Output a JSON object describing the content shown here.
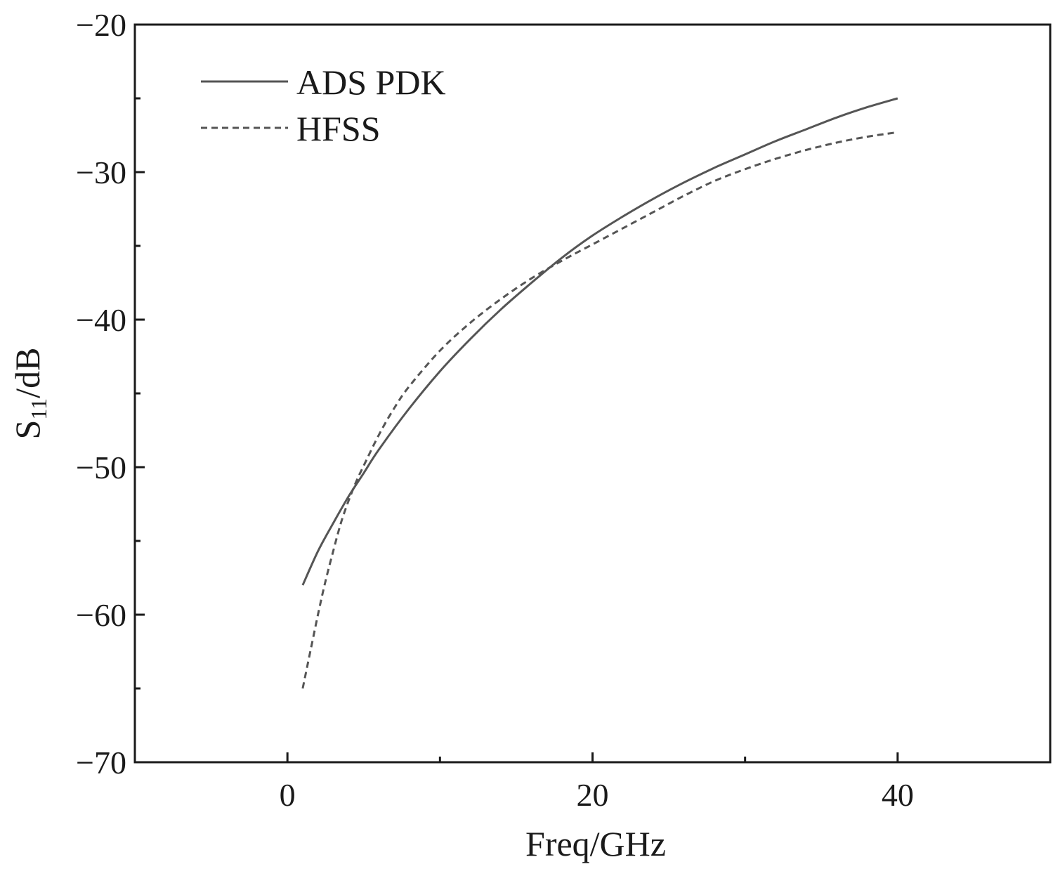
{
  "chart_data": {
    "type": "line",
    "title": "",
    "xlabel": "Freq/GHz",
    "ylabel": {
      "main": "S",
      "sub": "11",
      "unit": "/dB"
    },
    "xlim": [
      -10,
      50
    ],
    "ylim": [
      -70,
      -20
    ],
    "x_major_ticks": [
      0,
      20,
      40
    ],
    "x_tick_labels": [
      "0",
      "20",
      "40"
    ],
    "x_minor_ticks": [
      -10,
      10,
      30,
      50
    ],
    "y_major_ticks": [
      -70,
      -60,
      -50,
      -40,
      -30,
      -20
    ],
    "y_tick_labels": [
      "−70",
      "−60",
      "−50",
      "−40",
      "−30",
      "−20"
    ],
    "y_minor_ticks": [
      -65,
      -55,
      -45,
      -35,
      -25
    ],
    "grid": false,
    "legend_position": "top-left",
    "series": [
      {
        "name": "ADS PDK",
        "style": "solid",
        "color": "#555555",
        "x": [
          1,
          2,
          3,
          4,
          5,
          6,
          8,
          10,
          12,
          14,
          16,
          18,
          20,
          22,
          24,
          26,
          28,
          30,
          32,
          34,
          36,
          38,
          40
        ],
        "y": [
          -58.0,
          -55.7,
          -53.8,
          -52.0,
          -50.4,
          -48.8,
          -46.0,
          -43.5,
          -41.3,
          -39.3,
          -37.5,
          -35.8,
          -34.3,
          -33.0,
          -31.8,
          -30.7,
          -29.7,
          -28.8,
          -27.9,
          -27.1,
          -26.3,
          -25.6,
          -25.0
        ]
      },
      {
        "name": "HFSS",
        "style": "dashed",
        "color": "#555555",
        "x": [
          1,
          1.5,
          2,
          2.5,
          3,
          3.5,
          4,
          4.5,
          5,
          6,
          7,
          8,
          10,
          12,
          14,
          16,
          18,
          20,
          22,
          24,
          26,
          28,
          30,
          32,
          34,
          36,
          38,
          40
        ],
        "y": [
          -65.0,
          -62.5,
          -60.0,
          -57.7,
          -55.7,
          -53.8,
          -52.3,
          -51.0,
          -49.9,
          -47.8,
          -46.0,
          -44.5,
          -42.1,
          -40.2,
          -38.6,
          -37.2,
          -36.0,
          -34.9,
          -33.8,
          -32.7,
          -31.6,
          -30.6,
          -29.8,
          -29.1,
          -28.5,
          -28.0,
          -27.6,
          -27.3
        ]
      }
    ]
  }
}
